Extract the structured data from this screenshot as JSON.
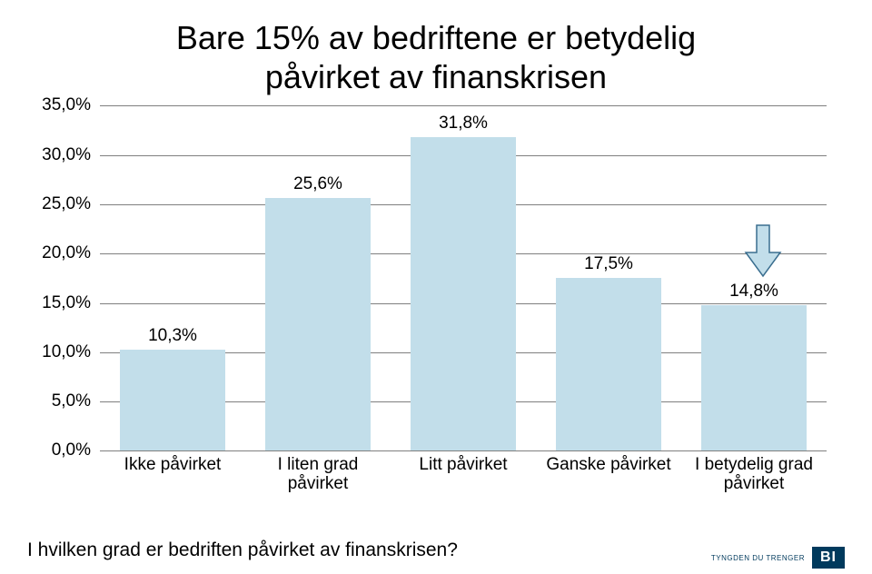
{
  "title_line1": "Bare 15% av bedriftene er betydelig",
  "title_line2": "påvirket av finanskrisen",
  "subtitle": "I hvilken grad er bedriften påvirket av finanskrisen?",
  "chart": {
    "type": "bar",
    "ymax": 35.0,
    "ytick_step": 5.0,
    "yticks": [
      "0,0%",
      "5,0%",
      "10,0%",
      "15,0%",
      "20,0%",
      "25,0%",
      "30,0%",
      "35,0%"
    ],
    "categories": [
      "Ikke påvirket",
      "I liten grad påvirket",
      "Litt påvirket",
      "Ganske påvirket",
      "I betydelig grad påvirket"
    ],
    "values": [
      10.3,
      25.6,
      31.8,
      17.5,
      14.8
    ],
    "value_labels": [
      "10,3%",
      "25,6%",
      "31,8%",
      "17,5%",
      "14,8%"
    ],
    "bar_color": "#c2deea",
    "grid_color": "#7f7f7f",
    "background": "#ffffff",
    "label_fontsize": 19,
    "title_fontsize": 36,
    "arrow_color": "#c2deea",
    "arrow_stroke": "#3a6e8f",
    "arrow_target_index": 4
  },
  "footer": {
    "tagline": "TYNGDEN DU TRENGER",
    "logo_text": "BI",
    "logo_bg": "#003a5d",
    "logo_fg": "#ffffff"
  }
}
